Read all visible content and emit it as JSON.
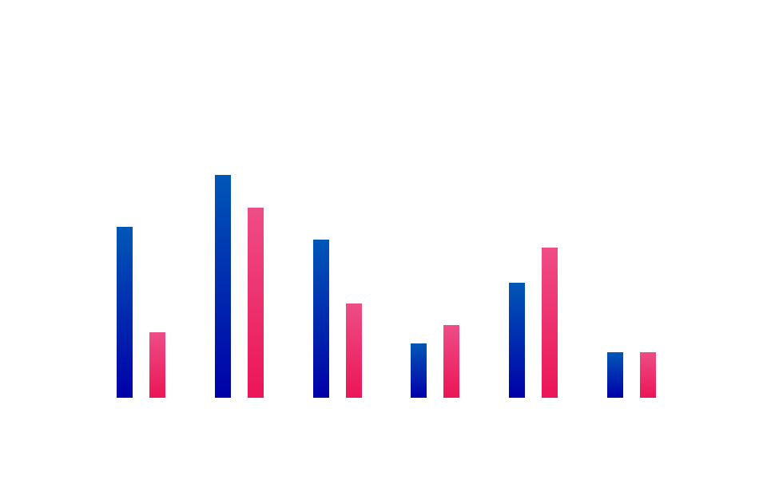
{
  "chart_data": {
    "type": "bar",
    "categories": [
      "",
      "",
      "",
      "",
      "",
      ""
    ],
    "series": [
      {
        "color_top": "#0057b7",
        "color_bottom": "#0000a8",
        "values": [
          214,
          279,
          198,
          68,
          144,
          57
        ]
      },
      {
        "color_top": "#ee4d86",
        "color_bottom": "#ec1557",
        "values": [
          82,
          238,
          118,
          91,
          188,
          57
        ]
      }
    ],
    "ylim": [
      0,
      300
    ],
    "grid": false,
    "legend": "none"
  }
}
